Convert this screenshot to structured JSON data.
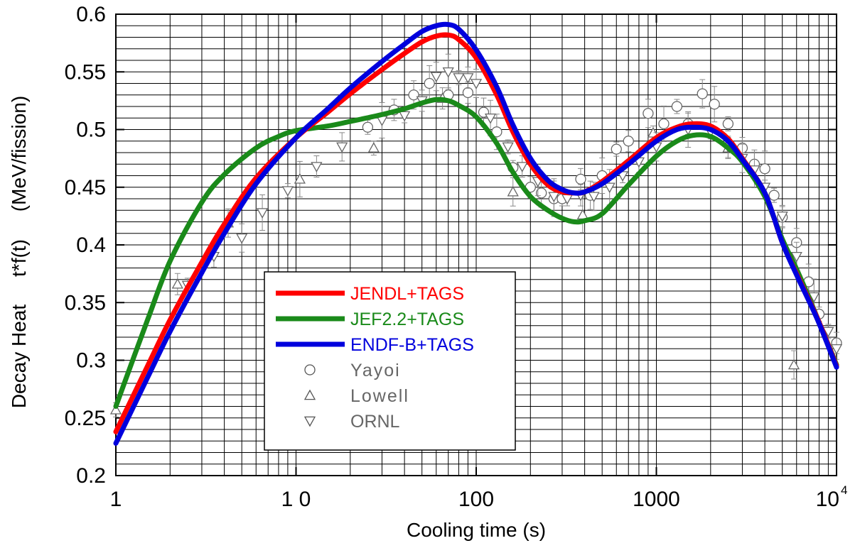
{
  "chart_data": {
    "type": "line",
    "xscale": "log",
    "xlim": [
      1,
      10000
    ],
    "ylim": [
      0.2,
      0.6
    ],
    "grid": true,
    "xlabel": "Cooling  time  (s)",
    "ylabel": "Decay Heat     t*f(t)     (MeV/fission)",
    "x_tick_labels": [
      "1",
      "1 0",
      "100",
      "1000",
      "10"
    ],
    "x_tick_exponent": "4",
    "y_tick_labels": [
      "0.2",
      "0.25",
      "0.3",
      "0.35",
      "0.4",
      "0.45",
      "0.5",
      "0.55",
      "0.6"
    ],
    "legend_position": "lower-left",
    "series": [
      {
        "name": "JENDL+TAGS",
        "kind": "line",
        "color": "#ff0000",
        "x": [
          1,
          1.5,
          2,
          3,
          4,
          6,
          10,
          15,
          20,
          30,
          40,
          50,
          60,
          70,
          80,
          100,
          130,
          160,
          200,
          250,
          300,
          350,
          400,
          500,
          700,
          1000,
          1300,
          1600,
          2000,
          2500,
          3000,
          4000,
          5000,
          6000,
          7000,
          8000,
          10000
        ],
        "y": [
          0.238,
          0.295,
          0.335,
          0.385,
          0.418,
          0.458,
          0.493,
          0.515,
          0.531,
          0.552,
          0.566,
          0.576,
          0.581,
          0.582,
          0.578,
          0.562,
          0.53,
          0.498,
          0.47,
          0.452,
          0.446,
          0.445,
          0.446,
          0.455,
          0.473,
          0.493,
          0.502,
          0.505,
          0.503,
          0.492,
          0.475,
          0.445,
          0.402,
          0.375,
          0.353,
          0.333,
          0.295
        ]
      },
      {
        "name": "JEF2.2+TAGS",
        "kind": "line",
        "color": "#1a8a1a",
        "x": [
          1,
          1.5,
          2,
          3,
          4,
          6,
          8,
          10,
          15,
          20,
          30,
          40,
          50,
          60,
          70,
          80,
          100,
          130,
          160,
          200,
          250,
          300,
          350,
          400,
          500,
          700,
          1000,
          1300,
          1600,
          2000,
          2500,
          3000,
          4000,
          5000,
          6000,
          7000,
          8000,
          10000
        ],
        "y": [
          0.26,
          0.335,
          0.386,
          0.437,
          0.461,
          0.484,
          0.494,
          0.499,
          0.503,
          0.507,
          0.513,
          0.518,
          0.523,
          0.526,
          0.525,
          0.521,
          0.511,
          0.488,
          0.463,
          0.442,
          0.43,
          0.423,
          0.42,
          0.421,
          0.427,
          0.452,
          0.477,
          0.49,
          0.495,
          0.494,
          0.484,
          0.472,
          0.442,
          0.405,
          0.379,
          0.355,
          0.333,
          0.296
        ]
      },
      {
        "name": "ENDF-B+TAGS",
        "kind": "line",
        "color": "#0000dd",
        "x": [
          1,
          1.5,
          2,
          3,
          4,
          6,
          10,
          15,
          20,
          30,
          40,
          50,
          60,
          70,
          80,
          100,
          130,
          160,
          200,
          250,
          300,
          350,
          400,
          500,
          700,
          1000,
          1300,
          1600,
          2000,
          2500,
          3000,
          4000,
          5000,
          6000,
          7000,
          8000,
          10000
        ],
        "y": [
          0.228,
          0.285,
          0.325,
          0.376,
          0.41,
          0.453,
          0.493,
          0.518,
          0.536,
          0.559,
          0.574,
          0.585,
          0.59,
          0.591,
          0.587,
          0.569,
          0.537,
          0.504,
          0.475,
          0.456,
          0.448,
          0.445,
          0.446,
          0.453,
          0.47,
          0.49,
          0.5,
          0.502,
          0.5,
          0.49,
          0.474,
          0.445,
          0.402,
          0.374,
          0.352,
          0.332,
          0.294
        ]
      },
      {
        "name": "Yayoi",
        "kind": "marker",
        "marker": "circle",
        "color": "#666666",
        "x": [
          25,
          35,
          45,
          55,
          70,
          90,
          110,
          130,
          160,
          200,
          230,
          270,
          300,
          380,
          430,
          500,
          600,
          700,
          900,
          1100,
          1300,
          1500,
          1800,
          2100,
          2500,
          3000,
          3500,
          4000,
          4500,
          5000,
          6000,
          7000,
          8000,
          10000
        ],
        "y": [
          0.502,
          0.517,
          0.53,
          0.54,
          0.53,
          0.532,
          0.515,
          0.498,
          0.467,
          0.45,
          0.445,
          0.44,
          0.44,
          0.457,
          0.443,
          0.46,
          0.483,
          0.49,
          0.514,
          0.505,
          0.52,
          0.505,
          0.531,
          0.522,
          0.505,
          0.484,
          0.47,
          0.466,
          0.443,
          0.424,
          0.402,
          0.368,
          0.34,
          0.315
        ]
      },
      {
        "name": "Lowell",
        "kind": "marker",
        "marker": "triangle-up",
        "color": "#666666",
        "x": [
          1,
          2.2,
          4.2,
          10.5,
          27,
          65,
          160,
          390,
          960,
          2500,
          5800
        ],
        "y": [
          0.257,
          0.366,
          0.419,
          0.457,
          0.484,
          0.527,
          0.446,
          0.426,
          0.497,
          0.484,
          0.296
        ]
      },
      {
        "name": "ORNL",
        "kind": "marker",
        "marker": "triangle-down",
        "color": "#666666",
        "x": [
          2.5,
          3.5,
          5,
          6.5,
          9,
          13,
          18,
          30,
          40,
          50,
          60,
          70,
          80,
          90,
          100,
          120,
          150,
          180,
          220,
          270,
          320,
          380,
          450,
          550,
          650,
          800,
          1000,
          1500,
          2000,
          2500,
          3000,
          3500,
          4000,
          5000,
          6000,
          7500,
          9000,
          10000
        ],
        "y": [
          0.365,
          0.39,
          0.406,
          0.428,
          0.447,
          0.468,
          0.485,
          0.508,
          0.512,
          0.525,
          0.546,
          0.55,
          0.545,
          0.545,
          0.54,
          0.51,
          0.485,
          0.468,
          0.455,
          0.442,
          0.44,
          0.443,
          0.442,
          0.45,
          0.46,
          0.472,
          0.485,
          0.5,
          0.498,
          0.485,
          0.475,
          0.465,
          0.45,
          0.425,
          0.39,
          0.355,
          0.325,
          0.31
        ]
      }
    ]
  }
}
